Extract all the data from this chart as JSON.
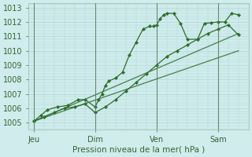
{
  "xlabel": "Pression niveau de la mer( hPa )",
  "bg_color": "#d0ecec",
  "grid_color": "#b0d4d4",
  "line_color": "#2d6e2d",
  "ylim": [
    1004.5,
    1013.3
  ],
  "yticks": [
    1005,
    1006,
    1007,
    1008,
    1009,
    1010,
    1011,
    1012,
    1013
  ],
  "xtick_labels": [
    "Jeu",
    "Dim",
    "Ven",
    "Sam"
  ],
  "xtick_positions": [
    0,
    36,
    72,
    108
  ],
  "xlim": [
    -3,
    126
  ],
  "vlines": [
    0,
    36,
    72,
    108
  ],
  "vline_color": "#557755",
  "line1_x": [
    0,
    120
  ],
  "line1_y": [
    1005.1,
    1011.2
  ],
  "line2_x": [
    0,
    120
  ],
  "line2_y": [
    1005.1,
    1010.0
  ],
  "series_upper_x": [
    0,
    4,
    8,
    14,
    20,
    26,
    30,
    36,
    38,
    40,
    42,
    44,
    48,
    52,
    56,
    60,
    64,
    68,
    70,
    72,
    74,
    76,
    78,
    82,
    86,
    90,
    96,
    100,
    104,
    108,
    112,
    116,
    120
  ],
  "series_upper_y": [
    1005.1,
    1005.5,
    1005.9,
    1006.1,
    1006.2,
    1006.6,
    1006.6,
    1006.1,
    1006.6,
    1007.0,
    1007.6,
    1007.9,
    1008.1,
    1008.5,
    1009.7,
    1010.6,
    1011.5,
    1011.7,
    1011.7,
    1011.8,
    1012.2,
    1012.5,
    1012.6,
    1012.6,
    1011.9,
    1010.8,
    1010.8,
    1011.9,
    1011.95,
    1012.0,
    1012.0,
    1012.6,
    1012.5
  ],
  "series_mid_x": [
    0,
    6,
    12,
    18,
    24,
    30,
    36,
    42,
    48,
    54,
    60,
    66,
    72,
    78,
    84,
    90,
    96,
    102,
    108,
    114,
    120
  ],
  "series_mid_y": [
    1005.1,
    1005.4,
    1005.7,
    1006.0,
    1006.1,
    1006.3,
    1005.7,
    1006.1,
    1006.6,
    1007.2,
    1007.8,
    1008.4,
    1009.0,
    1009.6,
    1010.0,
    1010.4,
    1010.8,
    1011.2,
    1011.5,
    1011.8,
    1011.1
  ]
}
